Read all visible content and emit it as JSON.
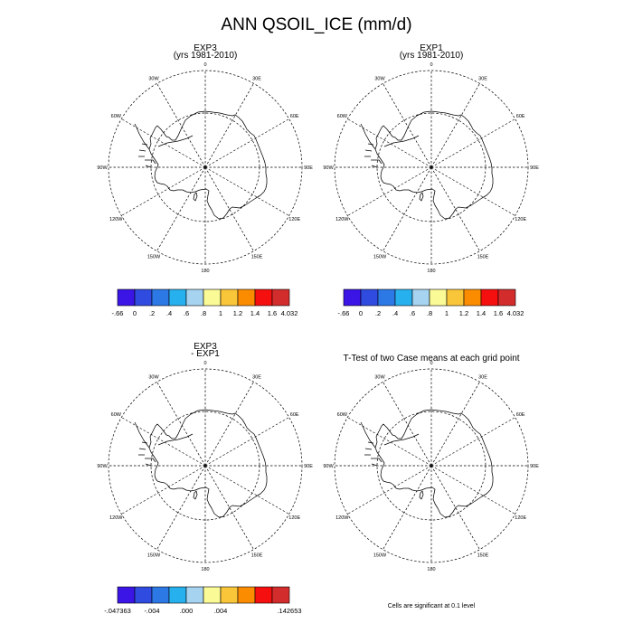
{
  "figure": {
    "title": "ANN QSOIL_ICE (mm/d)"
  },
  "panels": [
    {
      "title_line1": "EXP3",
      "title_line2": "(yrs 1981-2010)"
    },
    {
      "title_line1": "EXP1",
      "title_line2": "(yrs 1981-2010)"
    },
    {
      "title_line1": "EXP3",
      "title_line2": "- EXP1"
    },
    {
      "title_line1": "T-Test of two Case means at each grid point",
      "title_line2": ""
    }
  ],
  "longitude_labels": [
    "0",
    "30E",
    "60E",
    "90E",
    "120E",
    "150E",
    "180",
    "150W",
    "120W",
    "90W",
    "60W",
    "30W"
  ],
  "colorbars": {
    "colors": [
      "#3b14e6",
      "#2f4be0",
      "#2c79e6",
      "#27b0ee",
      "#a6d3ef",
      "#fafa96",
      "#f9c63a",
      "#fb8c00",
      "#f50f0f",
      "#d22c2c"
    ],
    "abs_labels": [
      "-.66",
      "0",
      ".2",
      ".4",
      ".6",
      ".8",
      "1",
      "1.2",
      "1.4",
      "1.6",
      "4.032"
    ],
    "diff_labels": [
      "-.047363",
      "",
      "-.004",
      "",
      ".000",
      "",
      ".004",
      "",
      "",
      ".142653"
    ]
  },
  "footer": {
    "significance_note": "Cells are significant at 0.1 level"
  }
}
